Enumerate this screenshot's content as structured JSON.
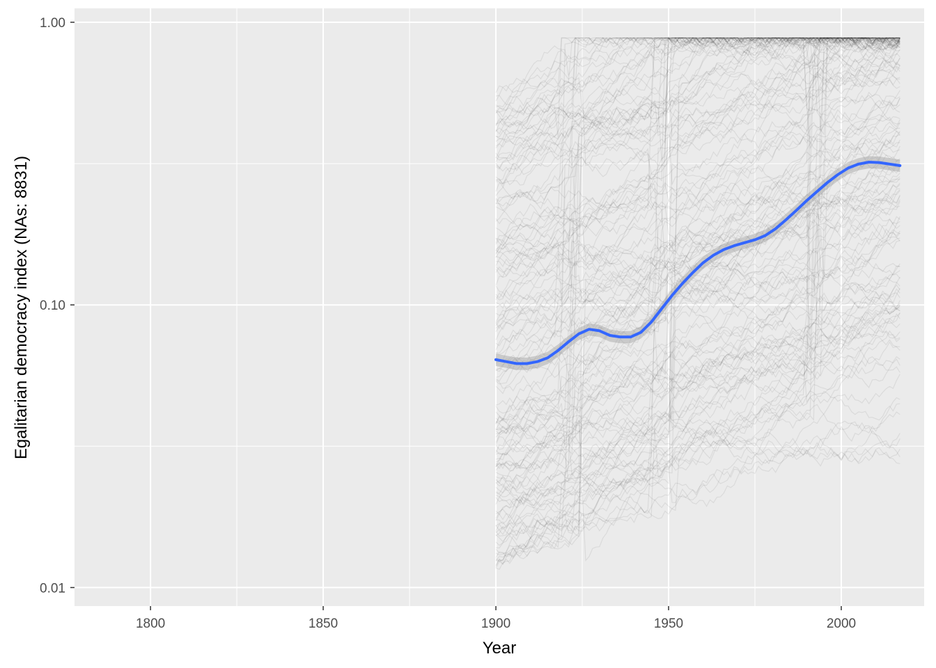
{
  "chart_data": {
    "type": "line",
    "title": "",
    "xlabel": "Year",
    "ylabel": "Egalitarian democracy index (NAs: 8831)",
    "x_range": [
      1778,
      2024
    ],
    "y_scale": "log10",
    "y_range": [
      0.0086,
      1.12
    ],
    "x_ticks": [
      1800,
      1850,
      1900,
      1950,
      2000
    ],
    "x_tick_labels": [
      "1800",
      "1850",
      "1900",
      "1950",
      "2000"
    ],
    "y_ticks": [
      0.01,
      0.1,
      1.0
    ],
    "y_tick_labels": [
      "0.01",
      "0.10",
      "1.00"
    ],
    "legend": "none",
    "background_lines": {
      "description": "one thin translucent grey line per country",
      "year_start": 1900,
      "year_end": 2017,
      "color": "#000000",
      "opacity": 0.07
    },
    "series": [
      {
        "name": "smoothed trend",
        "color": "#3366ff",
        "band_color": "#999999",
        "x": [
          1900,
          1903,
          1906,
          1909,
          1912,
          1915,
          1918,
          1921,
          1924,
          1927,
          1930,
          1933,
          1936,
          1939,
          1942,
          1945,
          1948,
          1951,
          1954,
          1957,
          1960,
          1963,
          1966,
          1969,
          1972,
          1975,
          1978,
          1981,
          1984,
          1987,
          1990,
          1993,
          1996,
          1999,
          2002,
          2005,
          2008,
          2011,
          2014,
          2017
        ],
        "values": [
          0.064,
          0.063,
          0.062,
          0.062,
          0.063,
          0.065,
          0.069,
          0.074,
          0.079,
          0.082,
          0.081,
          0.078,
          0.077,
          0.077,
          0.08,
          0.087,
          0.097,
          0.108,
          0.119,
          0.13,
          0.141,
          0.15,
          0.157,
          0.162,
          0.166,
          0.17,
          0.176,
          0.186,
          0.2,
          0.216,
          0.234,
          0.252,
          0.271,
          0.289,
          0.305,
          0.315,
          0.32,
          0.319,
          0.315,
          0.311
        ]
      }
    ]
  }
}
